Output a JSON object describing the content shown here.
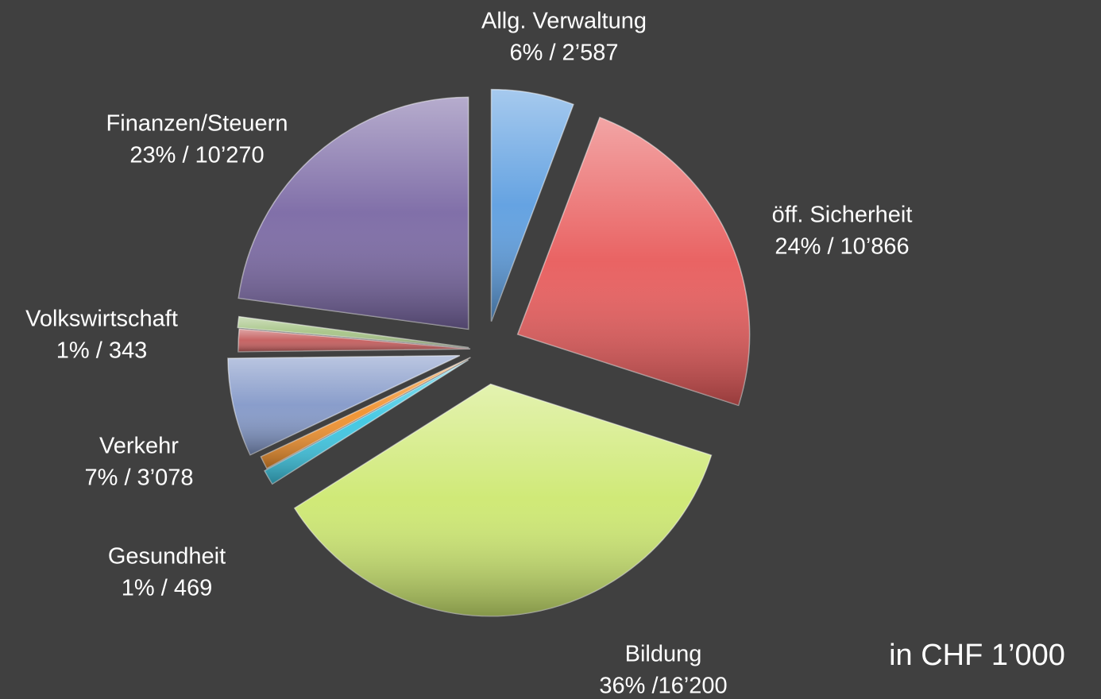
{
  "chart_data": {
    "type": "pie",
    "categories": [
      "Allg. Verwaltung",
      "öff. Sicherheit",
      "Bildung",
      "Gesundheit",
      null,
      "Verkehr",
      null,
      "Volkswirtschaft",
      "Finanzen/Steuern"
    ],
    "values": [
      2587,
      10866,
      16200,
      469,
      400,
      3078,
      700,
      343,
      10270
    ],
    "value_labels": [
      "6% / 2’587",
      "24% / 10’866",
      "36% /16’200",
      "1% / 469",
      null,
      "7% / 3’078",
      null,
      "1% / 343",
      "23% / 10’270"
    ],
    "colors": [
      "#5d9ee0",
      "#e85b5b",
      "#cde870",
      "#3cc6e2",
      "#f0902c",
      "#8398c8",
      "#c45c5c",
      "#a6c486",
      "#7a68a4"
    ],
    "annotation": "in CHF 1’000"
  }
}
